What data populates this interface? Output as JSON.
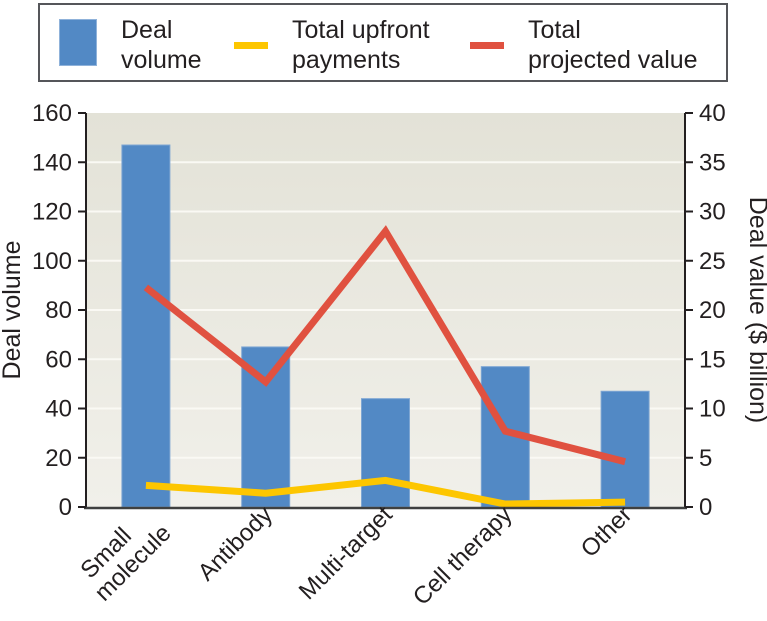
{
  "legend": {
    "items": [
      {
        "label": "Deal\nvolume",
        "swatch": "bar",
        "color": "#5289c5"
      },
      {
        "label": "Total upfront\npayments",
        "swatch": "line",
        "color": "#fdc600"
      },
      {
        "label": "Total\nprojected value",
        "swatch": "line",
        "color": "#e05140"
      }
    ]
  },
  "chart_data": {
    "type": "bar+line",
    "categories": [
      "Small molecule",
      "Antibody",
      "Multi-target",
      "Cell therapy",
      "Other"
    ],
    "categories_display": [
      "Small\nmolecule",
      "Antibody",
      "Multi-target",
      "Cell therapy",
      "Other"
    ],
    "series": [
      {
        "name": "Deal volume",
        "type": "bar",
        "axis": "left",
        "color": "#5289c5",
        "values": [
          147,
          65,
          44,
          57,
          47
        ]
      },
      {
        "name": "Total upfront payments",
        "type": "line",
        "axis": "right",
        "color": "#fdc600",
        "values": [
          2.2,
          1.4,
          2.7,
          0.3,
          0.5
        ]
      },
      {
        "name": "Total projected value",
        "type": "line",
        "axis": "right",
        "color": "#e05140",
        "values": [
          22.3,
          12.7,
          28,
          7.7,
          4.6
        ]
      }
    ],
    "ylabel_left": "Deal volume",
    "ylabel_right": "Deal value ($ billion)",
    "yaxis_left": {
      "min": 0,
      "max": 160,
      "step": 20
    },
    "yaxis_right": {
      "min": 0,
      "max": 40,
      "step": 5
    },
    "grid": true,
    "legend_position": "top"
  },
  "colors": {
    "bar_blue": "#5289c5",
    "line_yellow": "#fdc600",
    "line_red": "#e05140",
    "plot_bg_top": "#e3e2d7",
    "plot_bg_bottom": "#f1f0ea",
    "gridline": "#faf9f4",
    "axis": "#231f20",
    "baseline": "#3f4040",
    "text": "#231f20",
    "legend_border": "#55565a"
  }
}
